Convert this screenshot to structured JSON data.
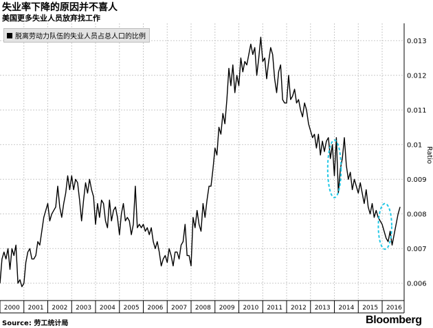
{
  "title": "失业率下降的原因并不喜人",
  "subtitle": "美国更多失业人员放弃找工作",
  "source": "Source: 劳工统计局",
  "brand": "Bloomberg",
  "chart_data": {
    "type": "line",
    "title": "失业率下降的原因并不喜人",
    "subtitle": "美国更多失业人员放弃找工作",
    "legend": [
      "脱离劳动力队伍的失业人员占总人口的比例"
    ],
    "legend_position": "top-left",
    "ylabel": "Ratio",
    "y_axis_side": "right",
    "ylim": [
      0.0055,
      0.0135
    ],
    "yticks": [
      0.006,
      0.007,
      0.008,
      0.009,
      0.01,
      0.011,
      0.012,
      0.013
    ],
    "ytick_labels": [
      "0.006",
      "0.007",
      "0.008",
      "0.009",
      "0.01",
      "0.011",
      "0.012",
      "0.013"
    ],
    "xlim": [
      2000,
      2016.92
    ],
    "xtick_labels": [
      "2000",
      "2001",
      "2002",
      "2003",
      "2004",
      "2005",
      "2006",
      "2007",
      "2008",
      "2009",
      "2010",
      "2011",
      "2012",
      "2013",
      "2014",
      "2015",
      "2016"
    ],
    "grid": true,
    "line_color": "#000000",
    "highlight_color": "#21c8e6",
    "highlights": [
      {
        "x_center": 2014.0,
        "y_center": 0.0093,
        "x_radius": 0.28,
        "y_radius": 0.00083
      },
      {
        "x_center": 2016.12,
        "y_center": 0.00764,
        "x_radius": 0.28,
        "y_radius": 0.00066
      }
    ],
    "series": [
      {
        "name": "脱离劳动力队伍的失业人员占总人口的比例",
        "x_start": 2000.0,
        "x_step": 0.08333,
        "values": [
          0.006,
          0.0067,
          0.0069,
          0.0067,
          0.007,
          0.0064,
          0.007,
          0.0068,
          0.0071,
          0.006,
          0.0061,
          0.0059,
          0.006,
          0.0066,
          0.0069,
          0.007,
          0.0067,
          0.0067,
          0.0068,
          0.0072,
          0.0071,
          0.0075,
          0.0079,
          0.0081,
          0.0083,
          0.0078,
          0.008,
          0.0081,
          0.0082,
          0.0088,
          0.0082,
          0.0079,
          0.0083,
          0.0086,
          0.0091,
          0.0087,
          0.0091,
          0.0087,
          0.009,
          0.0089,
          0.0084,
          0.0078,
          0.0084,
          0.0089,
          0.0086,
          0.009,
          0.0087,
          0.0085,
          0.0077,
          0.0083,
          0.0079,
          0.0084,
          0.0083,
          0.0078,
          0.0076,
          0.0084,
          0.0078,
          0.0081,
          0.0082,
          0.0079,
          0.0074,
          0.008,
          0.0083,
          0.0078,
          0.0079,
          0.0078,
          0.0074,
          0.0077,
          0.0088,
          0.0076,
          0.0077,
          0.0076,
          0.0077,
          0.0075,
          0.0076,
          0.0074,
          0.0076,
          0.0072,
          0.007,
          0.0072,
          0.0069,
          0.0065,
          0.0067,
          0.0068,
          0.0066,
          0.007,
          0.0068,
          0.0065,
          0.0069,
          0.0069,
          0.0067,
          0.0071,
          0.0072,
          0.0077,
          0.0068,
          0.0068,
          0.0065,
          0.0079,
          0.0076,
          0.0081,
          0.0077,
          0.0075,
          0.0083,
          0.0079,
          0.0084,
          0.0088,
          0.0088,
          0.0093,
          0.0099,
          0.0097,
          0.0105,
          0.0103,
          0.0109,
          0.0106,
          0.0113,
          0.0122,
          0.0117,
          0.0123,
          0.0115,
          0.012,
          0.0117,
          0.0125,
          0.0121,
          0.0124,
          0.0123,
          0.0126,
          0.0129,
          0.0126,
          0.0128,
          0.012,
          0.0125,
          0.0131,
          0.0124,
          0.0125,
          0.0119,
          0.0124,
          0.0128,
          0.0126,
          0.0119,
          0.0115,
          0.0121,
          0.0123,
          0.0113,
          0.0112,
          0.0112,
          0.012,
          0.0113,
          0.0114,
          0.0116,
          0.0112,
          0.0113,
          0.011,
          0.0108,
          0.0112,
          0.011,
          0.0106,
          0.0104,
          0.0102,
          0.0103,
          0.0099,
          0.0103,
          0.0097,
          0.0101,
          0.0098,
          0.0101,
          0.0102,
          0.0096,
          0.01,
          0.0091,
          0.0102,
          0.0086,
          0.0093,
          0.0096,
          0.0102,
          0.0094,
          0.009,
          0.0092,
          0.0087,
          0.009,
          0.0088,
          0.0086,
          0.0089,
          0.0086,
          0.0083,
          0.0087,
          0.0082,
          0.008,
          0.0083,
          0.0079,
          0.0081,
          0.0079,
          0.0078,
          0.0077,
          0.0075,
          0.0073,
          0.0072,
          0.0075,
          0.0071,
          0.0074,
          0.0077,
          0.008,
          0.0082
        ]
      }
    ]
  }
}
